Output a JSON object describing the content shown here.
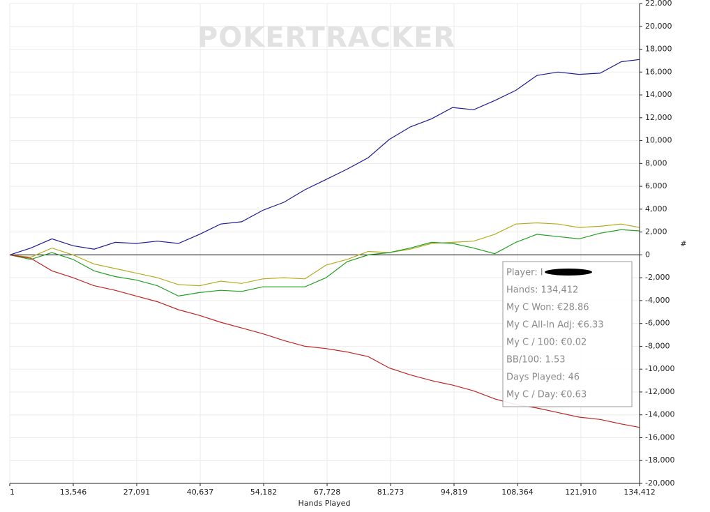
{
  "chart_data": {
    "type": "line",
    "watermark": "POKERTRACKER",
    "x_label": "Hands Played",
    "y_label": "#",
    "x": [
      1,
      4500,
      9000,
      13500,
      18000,
      22500,
      27000,
      31500,
      36000,
      40500,
      45000,
      49500,
      54000,
      58500,
      63000,
      67500,
      72000,
      76500,
      81000,
      85500,
      90000,
      94500,
      99000,
      103500,
      108000,
      112500,
      117000,
      121500,
      126000,
      130500,
      134412
    ],
    "series": [
      {
        "color": "#1c1c96",
        "values": [
          0,
          600,
          1400,
          800,
          500,
          1100,
          1000,
          1200,
          1000,
          1800,
          2700,
          2900,
          3900,
          4600,
          5700,
          6600,
          7500,
          8500,
          10100,
          11200,
          11900,
          12900,
          12700,
          13500,
          14400,
          15700,
          16000,
          15800,
          15900,
          16900,
          17100
        ]
      },
      {
        "color": "#b4ac20",
        "values": [
          0,
          -200,
          600,
          0,
          -800,
          -1200,
          -1600,
          -2000,
          -2600,
          -2700,
          -2300,
          -2500,
          -2100,
          -2000,
          -2100,
          -900,
          -400,
          300,
          200,
          500,
          1000,
          1100,
          1200,
          1800,
          2700,
          2800,
          2700,
          2400,
          2500,
          2700,
          2400
        ]
      },
      {
        "color": "#22a022",
        "values": [
          0,
          -400,
          200,
          -400,
          -1400,
          -1900,
          -2200,
          -2700,
          -3600,
          -3300,
          -3100,
          -3200,
          -2800,
          -2800,
          -2800,
          -2000,
          -600,
          0,
          200,
          600,
          1100,
          1000,
          600,
          100,
          1100,
          1800,
          1600,
          1400,
          1900,
          2200,
          2100
        ]
      },
      {
        "color": "#c02424",
        "values": [
          0,
          -300,
          -1400,
          -2000,
          -2700,
          -3100,
          -3600,
          -4100,
          -4800,
          -5300,
          -5900,
          -6400,
          -6900,
          -7500,
          -8000,
          -8200,
          -8500,
          -8900,
          -9900,
          -10500,
          -11000,
          -11400,
          -11900,
          -12600,
          -13100,
          -13400,
          -13800,
          -14200,
          -14400,
          -14800,
          -15100
        ]
      }
    ],
    "xlim": [
      1,
      134412
    ],
    "xticks": [
      1,
      {
        "value": 13546,
        "label": "13,546"
      },
      {
        "value": 27091,
        "label": "27,091"
      },
      {
        "value": 40637,
        "label": "40,637"
      },
      {
        "value": 54182,
        "label": "54,182"
      },
      {
        "value": 67728,
        "label": "67,728"
      },
      {
        "value": 81273,
        "label": "81,273"
      },
      {
        "value": 94819,
        "label": "94,819"
      },
      {
        "value": 108364,
        "label": "108,364"
      },
      {
        "value": 121910,
        "label": "121,910"
      },
      {
        "value": 134412,
        "label": "134,412"
      }
    ],
    "ylim": [
      -20000,
      22000
    ],
    "yticks": [
      {
        "value": 22000,
        "label": "22,000"
      },
      {
        "value": 20000,
        "label": "20,000"
      },
      {
        "value": 18000,
        "label": "18,000"
      },
      {
        "value": 16000,
        "label": "16,000"
      },
      {
        "value": 14000,
        "label": "14,000"
      },
      {
        "value": 12000,
        "label": "12,000"
      },
      {
        "value": 10000,
        "label": "10,000"
      },
      {
        "value": 8000,
        "label": "8,000"
      },
      {
        "value": 6000,
        "label": "6,000"
      },
      {
        "value": 4000,
        "label": "4,000"
      },
      {
        "value": 2000,
        "label": "2,000"
      },
      0,
      {
        "value": -2000,
        "label": "-2,000"
      },
      {
        "value": -4000,
        "label": "-4,000"
      },
      {
        "value": -6000,
        "label": "-6,000"
      },
      {
        "value": -8000,
        "label": "-8,000"
      },
      {
        "value": -10000,
        "label": "-10,000"
      },
      {
        "value": -12000,
        "label": "-12,000"
      },
      {
        "value": -14000,
        "label": "-14,000"
      },
      {
        "value": -16000,
        "label": "-16,000"
      },
      {
        "value": -18000,
        "label": "-18,000"
      },
      {
        "value": -20000,
        "label": "-20,000"
      }
    ],
    "grid": true,
    "tooltip": [
      "Player: I",
      "Hands: 134,412",
      "My C Won: €28.86",
      "My C All-In Adj: €6.33",
      "My C / 100: €0.02",
      "BB/100: 1.53",
      "Days Played: 46",
      "My C / Day: €0.63"
    ]
  }
}
